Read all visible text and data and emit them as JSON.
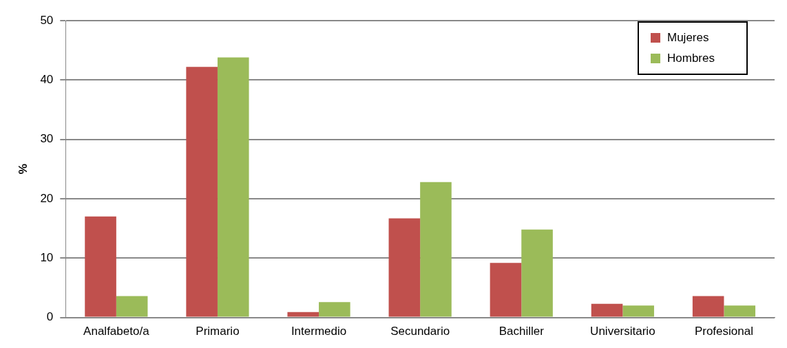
{
  "chart_data": {
    "type": "bar",
    "ylabel": "%",
    "categories": [
      "Analfabeto/a",
      "Primario",
      "Intermedio",
      "Secundario",
      "Bachiller",
      "Universitario",
      "Profesional"
    ],
    "series": [
      {
        "name": "Mujeres",
        "color": "#c0504d",
        "values": [
          17,
          42.2,
          0.9,
          16.7,
          9.2,
          2.3,
          3.6
        ]
      },
      {
        "name": "Hombres",
        "color": "#9bbb59",
        "values": [
          3.6,
          43.8,
          2.6,
          22.8,
          14.8,
          2,
          2
        ]
      }
    ],
    "ylim": [
      0,
      50
    ],
    "yticks": [
      0,
      10,
      20,
      30,
      40,
      50
    ],
    "grid": "y",
    "legend": "top right"
  }
}
